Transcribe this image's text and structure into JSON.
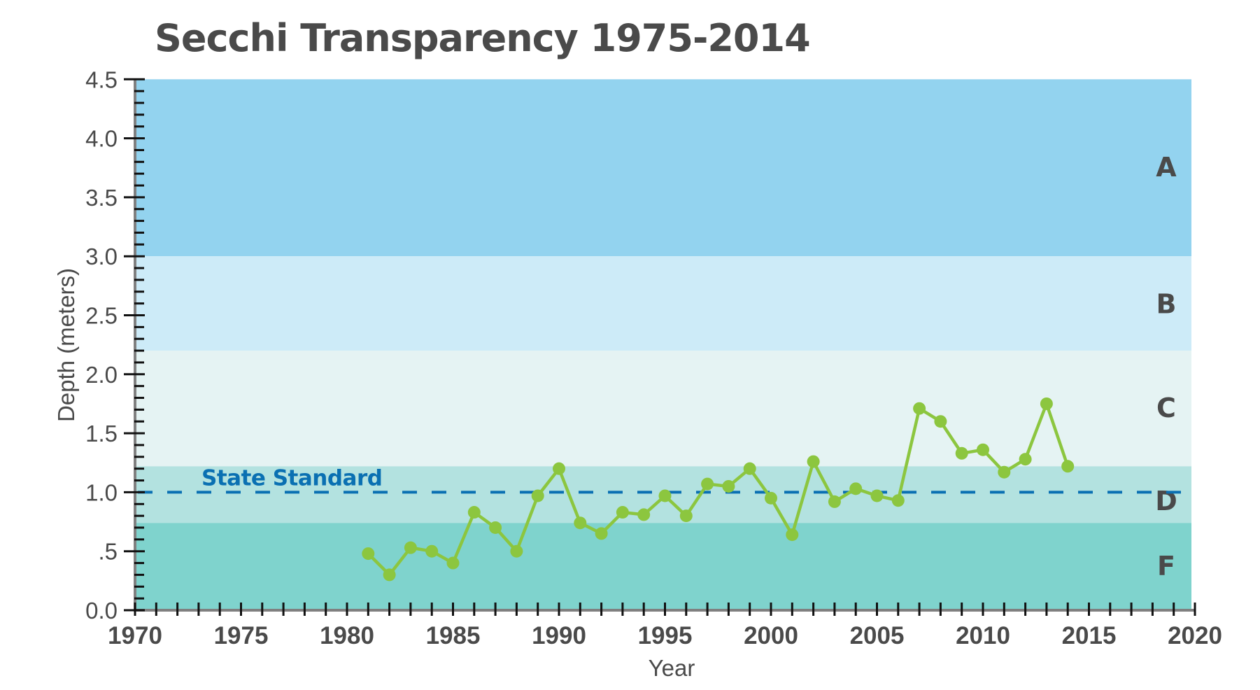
{
  "chart_data": {
    "type": "line",
    "title": "Secchi Transparency 1975-2014",
    "xlabel": "Year",
    "ylabel": "Depth (meters)",
    "xlim": [
      1970,
      2020
    ],
    "ylim": [
      0,
      4.5
    ],
    "x_ticks": [
      1970,
      1975,
      1980,
      1985,
      1990,
      1995,
      2000,
      2005,
      2010,
      2015,
      2020
    ],
    "x_tick_labels": [
      "1970",
      "1975",
      "1980",
      "1985",
      "1990",
      "1995",
      "2000",
      "2005",
      "2010",
      "2015",
      "2020"
    ],
    "x_minor_tick_step": 1,
    "y_ticks": [
      0,
      0.5,
      1.0,
      1.5,
      2.0,
      2.5,
      3.0,
      3.5,
      4.0,
      4.5
    ],
    "y_tick_labels": [
      "0.0",
      ".5",
      "1.0",
      "1.5",
      "2.0",
      "2.5",
      "3.0",
      "3.5",
      "4.0",
      "4.5"
    ],
    "y_minor_tick_step": 0.1,
    "grid": false,
    "legend": null,
    "bands": [
      {
        "label": "A",
        "from": 3.0,
        "to": 4.5,
        "color": "#93d3ef"
      },
      {
        "label": "B",
        "from": 2.2,
        "to": 3.0,
        "color": "#cdebf8"
      },
      {
        "label": "C",
        "from": 1.22,
        "to": 2.2,
        "color": "#e5f3f3"
      },
      {
        "label": "D",
        "from": 0.74,
        "to": 1.22,
        "color": "#b3e2e0"
      },
      {
        "label": "F",
        "from": 0.0,
        "to": 0.74,
        "color": "#7fd3cd"
      }
    ],
    "band_label_depths": {
      "A": 3.76,
      "B": 2.6,
      "C": 1.72,
      "D": 0.93,
      "F": 0.38
    },
    "reference_line": {
      "label": "State Standard",
      "value": 1.0,
      "style": "dashed",
      "color": "#0a70b2"
    },
    "series": [
      {
        "name": "Secchi depth",
        "color": "#8cc63f",
        "x": [
          1981,
          1982,
          1983,
          1984,
          1985,
          1986,
          1987,
          1988,
          1989,
          1990,
          1991,
          1992,
          1993,
          1994,
          1995,
          1996,
          1997,
          1998,
          1999,
          2000,
          2001,
          2002,
          2003,
          2004,
          2005,
          2006,
          2007,
          2008,
          2009,
          2010,
          2011,
          2012,
          2013,
          2014
        ],
        "values": [
          0.48,
          0.3,
          0.53,
          0.5,
          0.4,
          0.83,
          0.7,
          0.5,
          0.97,
          1.2,
          0.74,
          0.65,
          0.83,
          0.81,
          0.97,
          0.8,
          1.07,
          1.05,
          1.2,
          0.95,
          0.64,
          1.26,
          0.92,
          1.03,
          0.97,
          0.93,
          1.71,
          1.6,
          1.33,
          1.36,
          1.17,
          1.28,
          1.75,
          1.22
        ]
      }
    ]
  }
}
